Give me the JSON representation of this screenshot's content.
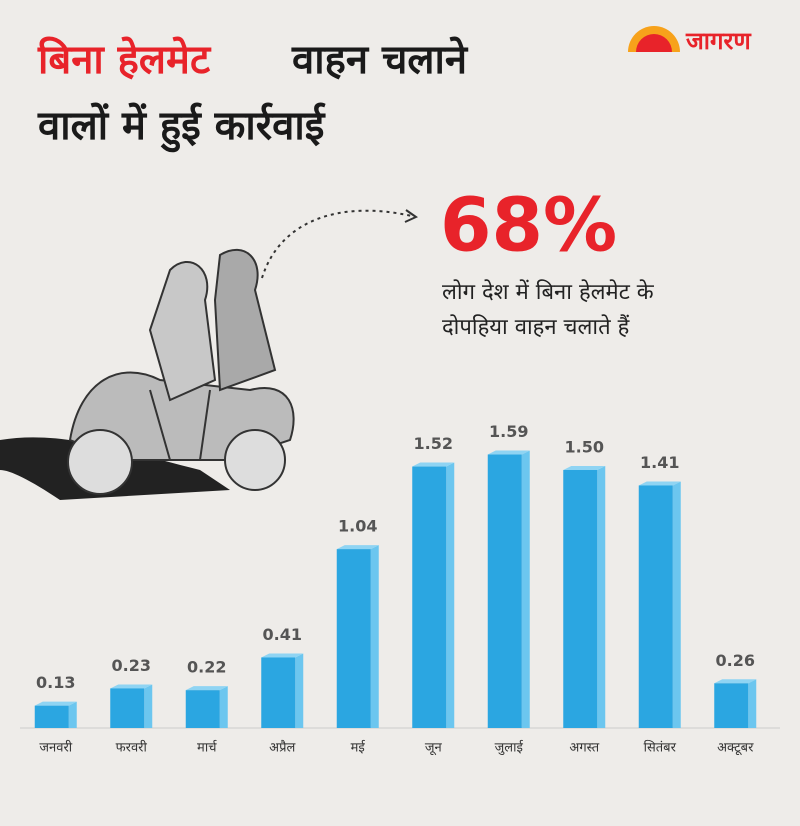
{
  "brand": "जागरण",
  "chart_data": {
    "type": "bar",
    "title_highlight": "बिना हेलमेट",
    "title": [
      "वाहन चलाने",
      "वालों में हुई कार्रवाई"
    ],
    "callout": {
      "figure": "68%",
      "text": [
        "लोग देश में बिना हेलमेट के",
        "दोपहिया वाहन चलाते हैं"
      ]
    },
    "categories": [
      "जनवरी",
      "फरवरी",
      "मार्च",
      "अप्रैल",
      "मई",
      "जून",
      "जुलाई",
      "अगस्त",
      "सितंबर",
      "अक्टूबर"
    ],
    "values": [
      0.13,
      0.23,
      0.22,
      0.41,
      1.04,
      1.52,
      1.59,
      1.5,
      1.41,
      0.26
    ],
    "value_labels": [
      "0.13",
      "0.23",
      "0.22",
      "0.41",
      "1.04",
      "1.52",
      "1.59",
      "1.50",
      "1.41",
      "0.26"
    ],
    "color": "#2ba6e1"
  }
}
